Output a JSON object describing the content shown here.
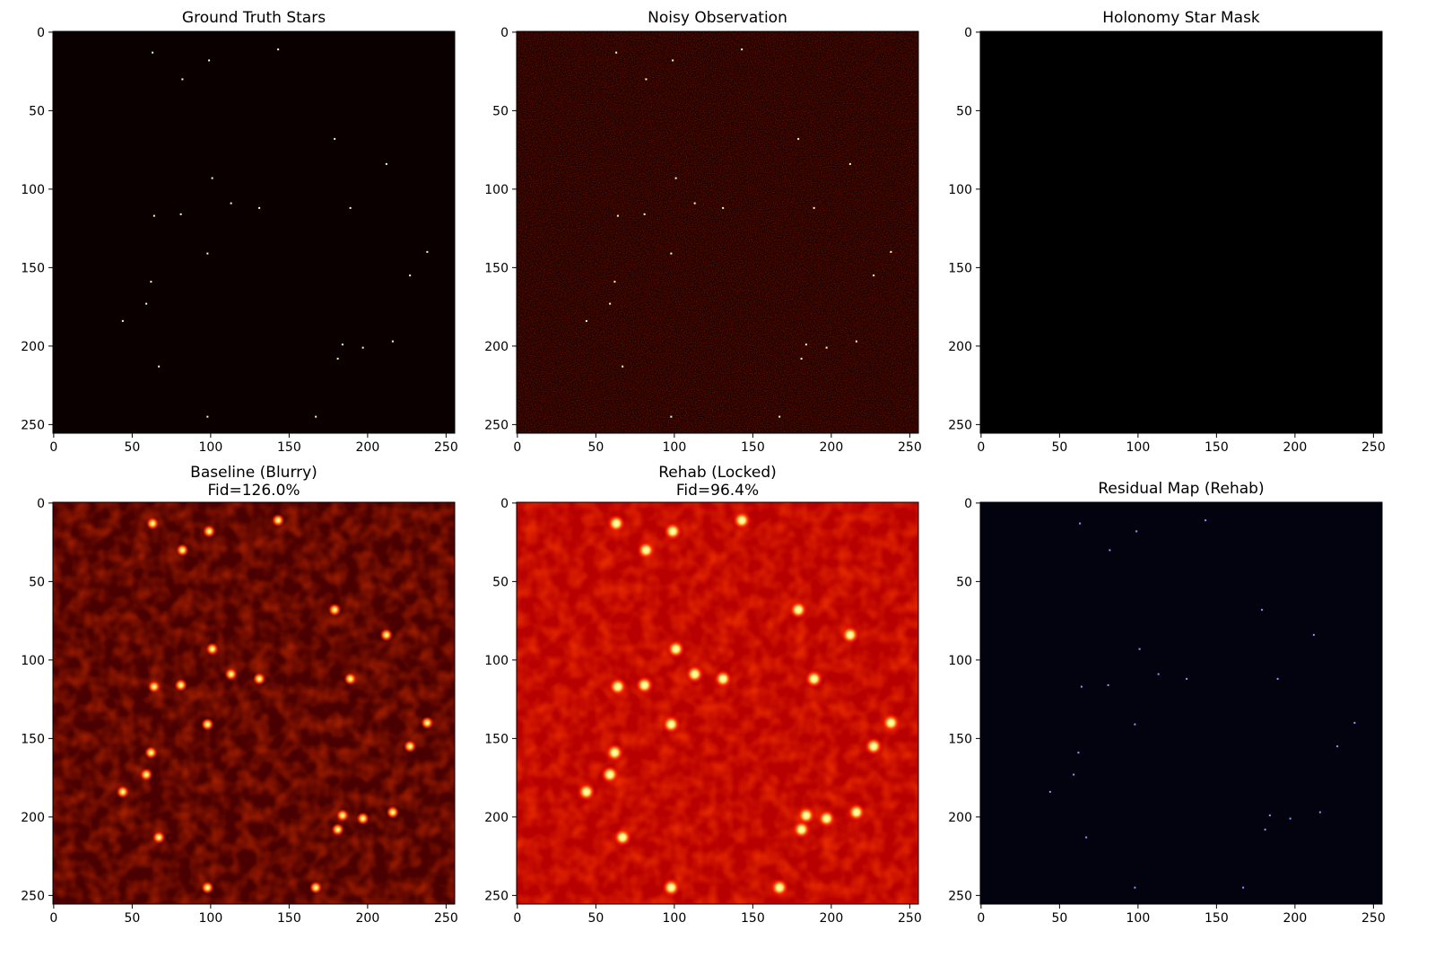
{
  "chart_data": [
    {
      "type": "heatmap",
      "title": "Ground Truth Stars",
      "colormap": "hot",
      "background_color": "#0a0000",
      "star_color": "#ffffb0",
      "xlim": [
        0,
        255
      ],
      "ylim": [
        255,
        0
      ],
      "xticks": [
        0,
        50,
        100,
        150,
        200,
        250
      ],
      "yticks": [
        0,
        50,
        100,
        150,
        200,
        250
      ],
      "stars_visible": true
    },
    {
      "type": "heatmap",
      "title": "Noisy Observation",
      "colormap": "hot",
      "background_color": "#1a0000",
      "star_color": "#ffffb0",
      "xlim": [
        0,
        255
      ],
      "ylim": [
        255,
        0
      ],
      "xticks": [
        0,
        50,
        100,
        150,
        200,
        250
      ],
      "yticks": [
        0,
        50,
        100,
        150,
        200,
        250
      ],
      "stars_visible": true,
      "noise": true
    },
    {
      "type": "heatmap",
      "title": "Holonomy Star Mask",
      "colormap": "gray",
      "background_color": "#000000",
      "xlim": [
        0,
        255
      ],
      "ylim": [
        255,
        0
      ],
      "xticks": [
        0,
        50,
        100,
        150,
        200,
        250
      ],
      "yticks": [
        0,
        50,
        100,
        150,
        200,
        250
      ],
      "stars_visible": false
    },
    {
      "type": "heatmap",
      "title": "Baseline (Blurry)",
      "subtitle": "Fid=126.0%",
      "colormap": "hot",
      "background_color": "#4a0000",
      "star_color": "#ffcc33",
      "xlim": [
        0,
        255
      ],
      "ylim": [
        255,
        0
      ],
      "xticks": [
        0,
        50,
        100,
        150,
        200,
        250
      ],
      "yticks": [
        0,
        50,
        100,
        150,
        200,
        250
      ],
      "stars_visible": true,
      "blurred": true
    },
    {
      "type": "heatmap",
      "title": "Rehab (Locked)",
      "subtitle": "Fid=96.4%",
      "colormap": "hot",
      "background_color": "#b80000",
      "star_color": "#ffee66",
      "xlim": [
        0,
        255
      ],
      "ylim": [
        255,
        0
      ],
      "xticks": [
        0,
        50,
        100,
        150,
        200,
        250
      ],
      "yticks": [
        0,
        50,
        100,
        150,
        200,
        250
      ],
      "stars_visible": true,
      "blurred": true
    },
    {
      "type": "heatmap",
      "title": "Residual Map (Rehab)",
      "colormap": "magma",
      "background_color": "#02030f",
      "star_color": "#8a9cff",
      "xlim": [
        0,
        255
      ],
      "ylim": [
        255,
        0
      ],
      "xticks": [
        0,
        50,
        100,
        150,
        200,
        250
      ],
      "yticks": [
        0,
        50,
        100,
        150,
        200,
        250
      ],
      "stars_visible": true
    }
  ],
  "stars": [
    [
      63,
      13
    ],
    [
      99,
      18
    ],
    [
      143,
      11
    ],
    [
      82,
      30
    ],
    [
      179,
      68
    ],
    [
      212,
      84
    ],
    [
      101,
      93
    ],
    [
      113,
      109
    ],
    [
      131,
      112
    ],
    [
      189,
      112
    ],
    [
      64,
      117
    ],
    [
      81,
      116
    ],
    [
      98,
      141
    ],
    [
      238,
      140
    ],
    [
      227,
      155
    ],
    [
      62,
      159
    ],
    [
      59,
      173
    ],
    [
      44,
      184
    ],
    [
      184,
      199
    ],
    [
      197,
      201
    ],
    [
      216,
      197
    ],
    [
      181,
      208
    ],
    [
      67,
      213
    ],
    [
      98,
      245
    ],
    [
      167,
      245
    ]
  ]
}
